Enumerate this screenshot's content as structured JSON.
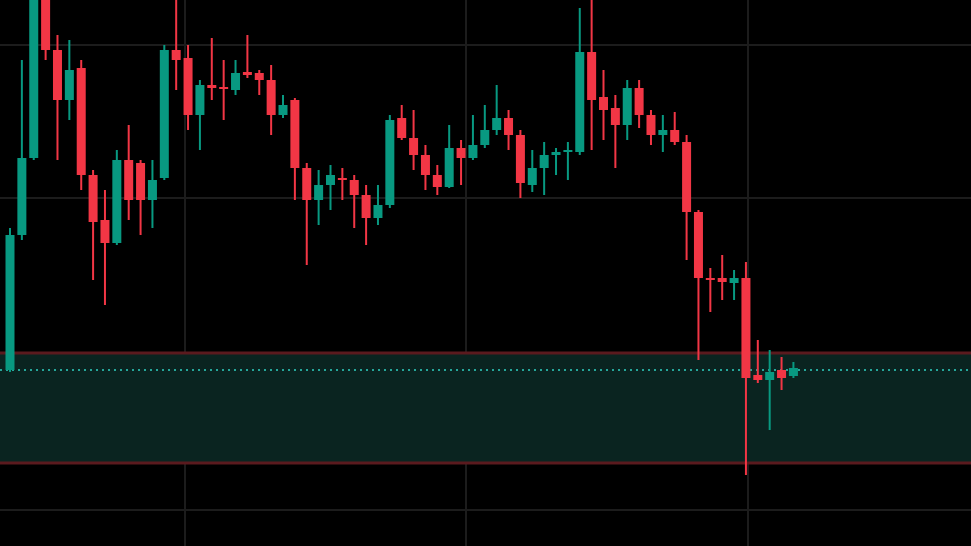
{
  "chart_data": {
    "type": "candlestick",
    "ylim": [
      0,
      546
    ],
    "up_color": "#089981",
    "down_color": "#f23645",
    "zone": [
      83,
      193
    ],
    "zone_color": "#0a2420",
    "zone_border_color": "#5a1a1e",
    "price_line": 176,
    "price_line_color": "#26a69a",
    "open": [
      176,
      311,
      388,
      546,
      496,
      446,
      478,
      371,
      326,
      303,
      386,
      383,
      346,
      368,
      496,
      488,
      431,
      461,
      459,
      456,
      474,
      473,
      466,
      431,
      446,
      378,
      346,
      361,
      368,
      366,
      351,
      328,
      341,
      428,
      408,
      391,
      371,
      359,
      398,
      388,
      401,
      416,
      428,
      411,
      361,
      378,
      391,
      394,
      394,
      494,
      449,
      438,
      421,
      458,
      431,
      411,
      416,
      404,
      334,
      268,
      268,
      263,
      268,
      171,
      166,
      176,
      170
    ],
    "high": [
      318,
      486,
      546,
      546,
      511,
      506,
      486,
      376,
      356,
      396,
      421,
      386,
      386,
      501,
      546,
      501,
      466,
      508,
      486,
      486,
      511,
      476,
      481,
      451,
      448,
      383,
      376,
      381,
      378,
      371,
      361,
      361,
      431,
      441,
      436,
      401,
      381,
      421,
      406,
      431,
      441,
      461,
      436,
      416,
      396,
      404,
      398,
      404,
      538,
      546,
      476,
      451,
      466,
      466,
      436,
      431,
      434,
      411,
      336,
      278,
      291,
      276,
      284,
      206,
      196,
      189,
      184
    ],
    "low": [
      174,
      306,
      386,
      486,
      386,
      426,
      356,
      266,
      241,
      301,
      326,
      311,
      318,
      366,
      456,
      416,
      396,
      446,
      426,
      451,
      468,
      451,
      411,
      428,
      346,
      281,
      321,
      336,
      346,
      318,
      301,
      321,
      338,
      406,
      376,
      356,
      351,
      358,
      361,
      386,
      398,
      411,
      396,
      348,
      354,
      351,
      371,
      366,
      391,
      396,
      406,
      378,
      406,
      418,
      401,
      394,
      401,
      286,
      186,
      234,
      246,
      246,
      71,
      163,
      116,
      156,
      168
    ],
    "close": [
      311,
      388,
      546,
      496,
      446,
      476,
      371,
      324,
      303,
      386,
      346,
      346,
      366,
      496,
      486,
      431,
      461,
      458,
      457,
      473,
      471,
      466,
      431,
      441,
      378,
      346,
      361,
      371,
      366,
      351,
      328,
      341,
      426,
      408,
      391,
      371,
      359,
      398,
      388,
      401,
      416,
      428,
      411,
      363,
      378,
      391,
      394,
      396,
      494,
      446,
      436,
      421,
      458,
      431,
      411,
      416,
      404,
      334,
      268,
      266,
      264,
      268,
      168,
      166,
      174,
      168,
      178
    ]
  }
}
